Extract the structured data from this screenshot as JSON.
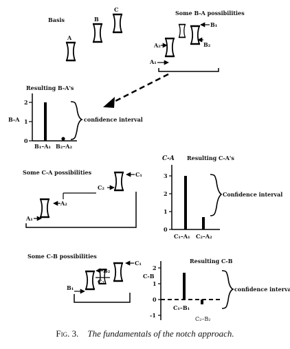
{
  "basis": {
    "title": "Basis",
    "labels": [
      "A",
      "B",
      "C"
    ]
  },
  "ba_possibilities": {
    "title": "Some B-A possibilities",
    "labels": [
      "B₁",
      "B₂",
      "A₂",
      "A₁"
    ]
  },
  "ba_results": {
    "title": "Resulting B-A's",
    "ylabel": "B-A",
    "yticks": [
      "2",
      "1",
      "0"
    ],
    "xlabels": [
      "B₁–A₁",
      "B₂–A₂"
    ],
    "bracket_label": "confidence interval",
    "values": [
      2,
      0
    ]
  },
  "ca_possibilities": {
    "title": "Some C-A possibilities",
    "labels": [
      "C₁",
      "C₂",
      "A₂",
      "A₁"
    ]
  },
  "ca_results": {
    "title": "Resulting C-A's",
    "ylabel": "C-A",
    "yticks": [
      "3",
      "2",
      "1",
      "0"
    ],
    "xlabels": [
      "C₁–A₁",
      "C₂–A₂"
    ],
    "bracket_label": "Confidence interval",
    "values": [
      3,
      0.7
    ]
  },
  "cb_possibilities": {
    "title": "Some C-B possibilities",
    "labels": [
      "C₁",
      "B₂",
      "C₂",
      "B₁"
    ]
  },
  "cb_results": {
    "title": "Resulting C-B",
    "ylabel": "C-B",
    "yticks": [
      "2",
      "1",
      "0",
      "-1"
    ],
    "xlabels": [
      "C₁–B₁",
      "C₂–B₂"
    ],
    "bracket_label": "confidence interval",
    "values": [
      1.7,
      -0.3
    ]
  },
  "caption": {
    "fig": "Fig. 3.",
    "title": "The fundamentals of the notch approach."
  }
}
